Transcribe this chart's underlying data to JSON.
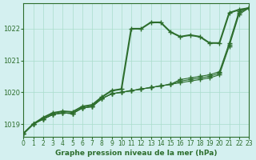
{
  "title": "Graphe pression niveau de la mer (hPa)",
  "background_color": "#d4f0f0",
  "grid_color": "#aaddcc",
  "line_color": "#2d6e2d",
  "xlim": [
    0,
    23
  ],
  "ylim": [
    1018.6,
    1022.8
  ],
  "yticks": [
    1019,
    1020,
    1021,
    1022
  ],
  "xticks": [
    0,
    1,
    2,
    3,
    4,
    5,
    6,
    7,
    8,
    9,
    10,
    11,
    12,
    13,
    14,
    15,
    16,
    17,
    18,
    19,
    20,
    21,
    22,
    23
  ],
  "series": [
    [
      1018.7,
      1019.0,
      1019.2,
      1019.35,
      1019.4,
      1019.38,
      1019.55,
      1019.6,
      1019.85,
      1020.05,
      1020.1,
      1022.0,
      1022.0,
      1022.2,
      1022.2,
      1021.9,
      1021.75,
      1021.8,
      1021.75,
      1021.55,
      1021.55,
      1022.5,
      1022.6,
      1022.65
    ],
    [
      1018.7,
      1019.0,
      1019.15,
      1019.3,
      1019.35,
      1019.33,
      1019.5,
      1019.55,
      1019.8,
      1019.95,
      1020.0,
      1020.05,
      1020.1,
      1020.15,
      1020.2,
      1020.25,
      1020.3,
      1020.35,
      1020.4,
      1020.45,
      1020.55,
      1021.45,
      1022.45,
      1022.65
    ],
    [
      1018.7,
      1019.0,
      1019.15,
      1019.3,
      1019.35,
      1019.33,
      1019.5,
      1019.55,
      1019.8,
      1019.95,
      1020.0,
      1020.05,
      1020.1,
      1020.15,
      1020.2,
      1020.25,
      1020.35,
      1020.4,
      1020.45,
      1020.5,
      1020.6,
      1021.5,
      1022.5,
      1022.65
    ],
    [
      1018.7,
      1019.0,
      1019.15,
      1019.3,
      1019.35,
      1019.33,
      1019.5,
      1019.55,
      1019.8,
      1019.95,
      1020.0,
      1020.05,
      1020.1,
      1020.15,
      1020.2,
      1020.25,
      1020.4,
      1020.45,
      1020.5,
      1020.55,
      1020.65,
      1021.55,
      1022.55,
      1022.65
    ]
  ],
  "linewidths": [
    1.5,
    0.8,
    0.8,
    0.8
  ]
}
